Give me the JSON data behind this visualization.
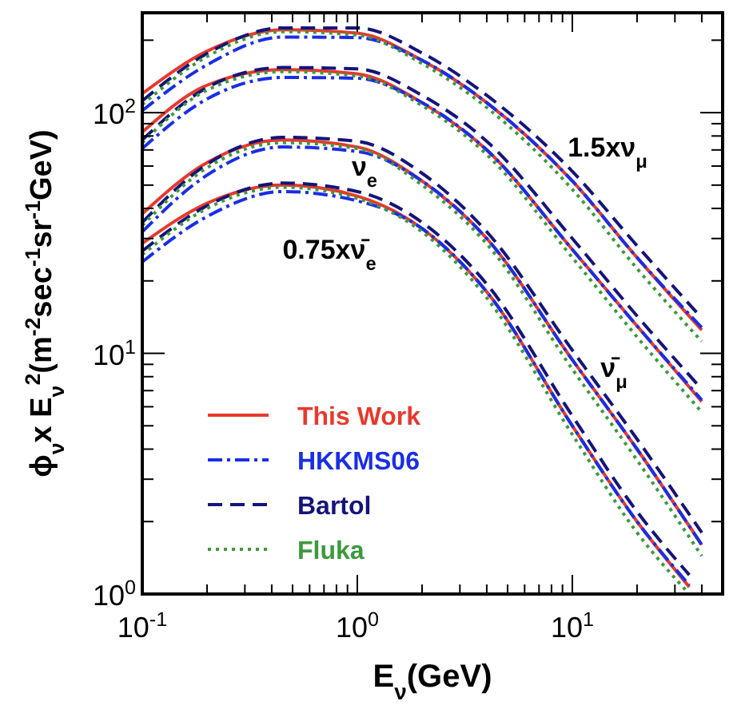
{
  "chart_data": {
    "type": "line",
    "xlabel": "E$_{ν}$(GeV)",
    "ylabel": "ϕ$_{ν}$x E$_{ν}$$^{2}$(m$^{-2}$sec$^{-1}$sr$^{-1}$GeV)",
    "log": "xy",
    "xlim": [
      0.1,
      50
    ],
    "ylim": [
      1,
      260
    ],
    "xticks": [
      {
        "value": 0.1,
        "label": "10$^{-1}$"
      },
      {
        "value": 0.2,
        "label": null
      },
      {
        "value": 0.3,
        "label": null
      },
      {
        "value": 0.4,
        "label": null
      },
      {
        "value": 0.5,
        "label": null
      },
      {
        "value": 0.6,
        "label": null
      },
      {
        "value": 0.7,
        "label": null
      },
      {
        "value": 0.8,
        "label": null
      },
      {
        "value": 0.9,
        "label": null
      },
      {
        "value": 1,
        "label": "10$^{0}$"
      },
      {
        "value": 2,
        "label": null
      },
      {
        "value": 3,
        "label": null
      },
      {
        "value": 4,
        "label": null
      },
      {
        "value": 5,
        "label": null
      },
      {
        "value": 6,
        "label": null
      },
      {
        "value": 7,
        "label": null
      },
      {
        "value": 8,
        "label": null
      },
      {
        "value": 9,
        "label": null
      },
      {
        "value": 10,
        "label": "10$^{1}$"
      },
      {
        "value": 20,
        "label": null
      },
      {
        "value": 30,
        "label": null
      },
      {
        "value": 40,
        "label": null
      }
    ],
    "yticks": [
      {
        "value": 1,
        "label": "10$^{0}$"
      },
      {
        "value": 2,
        "label": null
      },
      {
        "value": 3,
        "label": null
      },
      {
        "value": 4,
        "label": null
      },
      {
        "value": 5,
        "label": null
      },
      {
        "value": 6,
        "label": null
      },
      {
        "value": 7,
        "label": null
      },
      {
        "value": 8,
        "label": null
      },
      {
        "value": 9,
        "label": null
      },
      {
        "value": 10,
        "label": "10$^{1}$"
      },
      {
        "value": 20,
        "label": null
      },
      {
        "value": 30,
        "label": null
      },
      {
        "value": 40,
        "label": null
      },
      {
        "value": 50,
        "label": null
      },
      {
        "value": 60,
        "label": null
      },
      {
        "value": 70,
        "label": null
      },
      {
        "value": 80,
        "label": null
      },
      {
        "value": 90,
        "label": null
      },
      {
        "value": 100,
        "label": "10$^{2}$"
      },
      {
        "value": 200,
        "label": null
      }
    ],
    "x": [
      0.1,
      0.2,
      0.45,
      1,
      2,
      4,
      10,
      20,
      40
    ],
    "legend": "bottom left",
    "series": [
      {
        "name": "This Work",
        "color": "#e8392c",
        "line_style": "solid",
        "values": [
          120,
          180,
          221,
          214,
          165,
          110,
          52,
          25,
          12.5
        ]
      },
      {
        "name": "HKKMS06",
        "color": "#1a2ee6",
        "line_style": "dashdot",
        "values": [
          102,
          158,
          206,
          205,
          165,
          110,
          52,
          25,
          12.8
        ]
      },
      {
        "name": "Bartol",
        "color": "#14147a",
        "line_style": "dashed",
        "values": [
          112,
          176,
          225,
          225,
          177,
          118,
          57,
          28,
          14
        ]
      },
      {
        "name": "Fluka",
        "color": "#3c9a3c",
        "line_style": "dotted",
        "values": [
          108,
          171,
          217,
          210,
          160,
          105,
          48,
          22.5,
          11.2
        ]
      },
      {
        "color": "#e8392c",
        "line_style": "solid",
        "values": [
          83,
          130,
          151,
          145,
          110,
          70,
          27,
          13,
          6.3
        ]
      },
      {
        "color": "#1a2ee6",
        "line_style": "dashdot",
        "values": [
          71,
          114,
          140,
          139,
          110,
          70,
          27,
          13,
          6.4
        ]
      },
      {
        "color": "#14147a",
        "line_style": "dashed",
        "values": [
          77,
          127,
          154,
          152,
          118,
          76,
          30,
          14.3,
          7.1
        ]
      },
      {
        "color": "#3c9a3c",
        "line_style": "dotted",
        "values": [
          75,
          124,
          148,
          142,
          107,
          67,
          25,
          11.7,
          5.7
        ]
      },
      {
        "color": "#e8392c",
        "line_style": "solid",
        "values": [
          38,
          62,
          77,
          72,
          52,
          30,
          9.4,
          4.0,
          1.6
        ]
      },
      {
        "color": "#1a2ee6",
        "line_style": "dashdot",
        "values": [
          32,
          55,
          72,
          69,
          52,
          30,
          9.4,
          4.0,
          1.6
        ]
      },
      {
        "color": "#14147a",
        "line_style": "dashed",
        "values": [
          35,
          61,
          79,
          76,
          56,
          32,
          10.3,
          4.4,
          1.8
        ]
      },
      {
        "color": "#3c9a3c",
        "line_style": "dotted",
        "values": [
          34,
          59,
          75,
          71,
          50,
          28.5,
          8.6,
          3.6,
          1.44
        ]
      },
      {
        "color": "#e8392c",
        "line_style": "solid",
        "x": [
          0.1,
          0.2,
          0.45,
          1,
          2,
          4,
          10,
          20,
          35
        ],
        "values": [
          28.6,
          42,
          50,
          45,
          33,
          18,
          5.0,
          2.0,
          1.07
        ]
      },
      {
        "color": "#1a2ee6",
        "line_style": "dashdot",
        "x": [
          0.1,
          0.2,
          0.45,
          1,
          2,
          4,
          10,
          20,
          35
        ],
        "values": [
          24,
          37,
          47,
          43,
          33,
          18,
          5.0,
          2.0,
          1.09
        ]
      },
      {
        "color": "#14147a",
        "line_style": "dashed",
        "x": [
          0.1,
          0.2,
          0.45,
          1,
          2,
          4,
          10,
          20,
          35
        ],
        "values": [
          26.6,
          41,
          51,
          47,
          35,
          19.4,
          5.5,
          2.2,
          1.2
        ]
      },
      {
        "color": "#3c9a3c",
        "line_style": "dotted",
        "x": [
          0.1,
          0.2,
          0.45,
          1,
          2,
          4,
          10,
          20,
          35
        ],
        "values": [
          25.7,
          40,
          49,
          44,
          32,
          17,
          4.6,
          1.8,
          1.0
        ]
      }
    ],
    "annotations": [
      "1.5xν$_{μ}$",
      "ν̄$_{μ}$",
      "ν$_{e}$",
      "0.75xν̄$_{e}$"
    ]
  }
}
